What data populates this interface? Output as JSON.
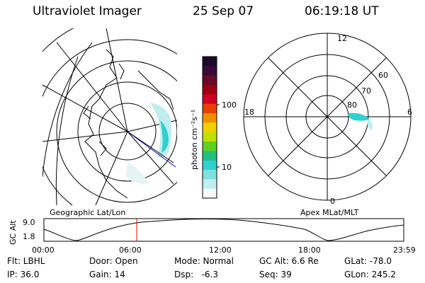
{
  "header": {
    "title": "Ultraviolet Imager",
    "date": "25 Sep 07",
    "time": "06:19:18 UT"
  },
  "colorbar": {
    "unit_label": "photon cm⁻²s⁻¹",
    "ticks": [
      "100",
      "10"
    ],
    "colors": [
      "#1a0a2a",
      "#3a0a3a",
      "#6a0a2a",
      "#a00010",
      "#d00020",
      "#e84000",
      "#f09000",
      "#f0d000",
      "#c0e000",
      "#60d020",
      "#20c080",
      "#30d0d0",
      "#80e0e0",
      "#c0eeee",
      "#f4f8f8"
    ]
  },
  "polar_plot": {
    "mlt_labels": [
      "12",
      "18",
      "6",
      "0"
    ],
    "lat_labels": [
      "60",
      "70",
      "80"
    ]
  },
  "map_labels": {
    "left": "Geographic Lat/Lon",
    "right": "Apex MLat/MLT"
  },
  "altitude_strip": {
    "axis_label": "GC Alt",
    "ticks": [
      "9.0",
      "1.8"
    ],
    "time_labels": [
      "00:00",
      "06:00",
      "12:00",
      "18:00",
      "23:59"
    ],
    "marker_color": "#e00000"
  },
  "status": {
    "row1": [
      "Flt: LBHL",
      "Door: Open",
      "Mode: Normal",
      "GC Alt: 6.6 Re",
      "GLat: -78.0"
    ],
    "row2": [
      "IP: 36.0",
      "Gain: 14",
      "Dsp:   -6.3",
      "Seq: 39",
      "GLon: 245.2"
    ]
  }
}
